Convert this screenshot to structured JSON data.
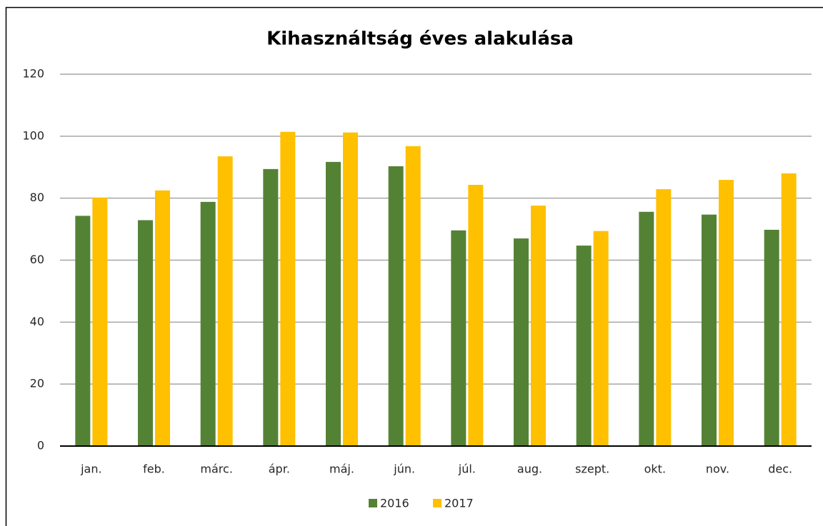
{
  "chart_data": {
    "type": "bar",
    "title": "Kihasználtság éves alakulása",
    "categories": [
      "jan.",
      "feb.",
      "márc.",
      "ápr.",
      "máj.",
      "jún.",
      "júl.",
      "aug.",
      "szept.",
      "okt.",
      "nov.",
      "dec."
    ],
    "series": [
      {
        "name": "2016",
        "color": "#548235",
        "values": [
          74.3,
          72.9,
          78.8,
          89.4,
          91.7,
          90.3,
          69.6,
          67,
          64.7,
          75.6,
          74.7,
          69.8
        ]
      },
      {
        "name": "2017",
        "color": "#ffc000",
        "values": [
          80.2,
          82.5,
          93.5,
          101.4,
          101.2,
          96.8,
          84.3,
          77.6,
          69.4,
          82.9,
          85.9,
          88
        ]
      }
    ],
    "ylim": [
      0,
      120
    ],
    "yticks": [
      0,
      20,
      40,
      60,
      80,
      100,
      120
    ],
    "grid": true,
    "legend": "bottom"
  }
}
